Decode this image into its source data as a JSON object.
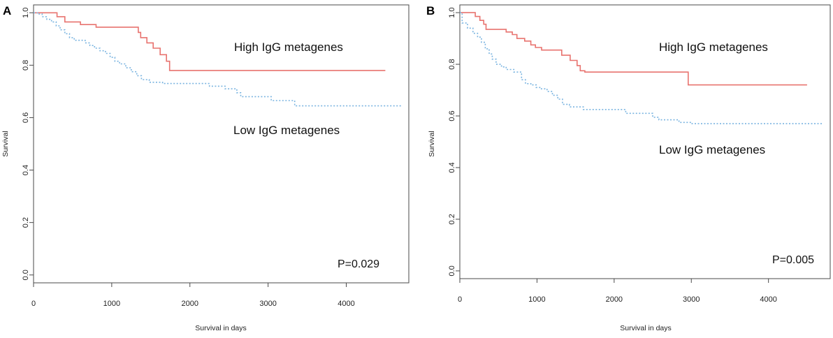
{
  "chart_data": [
    {
      "type": "line",
      "panel_label": "A",
      "xlabel": "Survival in days",
      "ylabel": "Survival",
      "xlim": [
        0,
        4800
      ],
      "ylim": [
        -0.03,
        1.03
      ],
      "xticks": [
        0,
        1000,
        2000,
        3000,
        4000
      ],
      "xtick_labels": [
        "0",
        "1000",
        "2000",
        "3000",
        "4000"
      ],
      "yticks": [
        0.0,
        0.2,
        0.4,
        0.6,
        0.8,
        1.0
      ],
      "ytick_labels": [
        "0.0",
        "0.2",
        "0.4",
        "0.6",
        "0.8",
        "1.0"
      ],
      "p_value": "P=0.029",
      "series": [
        {
          "name": "High IgG metagenes",
          "color": "#e8736f",
          "dash": "solid",
          "steps": [
            [
              0,
              1.0
            ],
            [
              300,
              0.985
            ],
            [
              400,
              0.965
            ],
            [
              600,
              0.955
            ],
            [
              800,
              0.945
            ],
            [
              1340,
              0.925
            ],
            [
              1370,
              0.905
            ],
            [
              1450,
              0.885
            ],
            [
              1530,
              0.865
            ],
            [
              1620,
              0.84
            ],
            [
              1700,
              0.815
            ],
            [
              1740,
              0.78
            ],
            [
              4500,
              0.78
            ]
          ]
        },
        {
          "name": "Low IgG metagenes",
          "color": "#7ab4e0",
          "dash": "dotted",
          "steps": [
            [
              0,
              1.0
            ],
            [
              50,
              0.995
            ],
            [
              110,
              0.985
            ],
            [
              170,
              0.975
            ],
            [
              230,
              0.965
            ],
            [
              290,
              0.95
            ],
            [
              340,
              0.935
            ],
            [
              400,
              0.92
            ],
            [
              460,
              0.905
            ],
            [
              520,
              0.895
            ],
            [
              660,
              0.885
            ],
            [
              720,
              0.875
            ],
            [
              780,
              0.865
            ],
            [
              850,
              0.855
            ],
            [
              920,
              0.845
            ],
            [
              980,
              0.83
            ],
            [
              1040,
              0.815
            ],
            [
              1100,
              0.805
            ],
            [
              1180,
              0.79
            ],
            [
              1250,
              0.775
            ],
            [
              1320,
              0.76
            ],
            [
              1380,
              0.745
            ],
            [
              1480,
              0.735
            ],
            [
              1650,
              0.73
            ],
            [
              2250,
              0.72
            ],
            [
              2450,
              0.71
            ],
            [
              2600,
              0.695
            ],
            [
              2650,
              0.68
            ],
            [
              3040,
              0.665
            ],
            [
              3340,
              0.645
            ],
            [
              4700,
              0.645
            ]
          ]
        }
      ],
      "annotations": [
        "High IgG metagenes",
        "Low IgG metagenes"
      ]
    },
    {
      "type": "line",
      "panel_label": "B",
      "xlabel": "Survival in days",
      "ylabel": "Survival",
      "xlim": [
        0,
        4800
      ],
      "ylim": [
        -0.03,
        1.03
      ],
      "xticks": [
        0,
        1000,
        2000,
        3000,
        4000
      ],
      "xtick_labels": [
        "0",
        "1000",
        "2000",
        "3000",
        "4000"
      ],
      "yticks": [
        0.0,
        0.2,
        0.4,
        0.6,
        0.8,
        1.0
      ],
      "ytick_labels": [
        "0.0",
        "0.2",
        "0.4",
        "0.6",
        "0.8",
        "1.0"
      ],
      "p_value": "P=0.005",
      "series": [
        {
          "name": "High IgG metagenes",
          "color": "#e8736f",
          "dash": "solid",
          "steps": [
            [
              0,
              1.0
            ],
            [
              200,
              0.985
            ],
            [
              260,
              0.97
            ],
            [
              310,
              0.955
            ],
            [
              340,
              0.935
            ],
            [
              600,
              0.925
            ],
            [
              680,
              0.915
            ],
            [
              740,
              0.9
            ],
            [
              840,
              0.89
            ],
            [
              920,
              0.875
            ],
            [
              980,
              0.865
            ],
            [
              1060,
              0.855
            ],
            [
              1320,
              0.835
            ],
            [
              1430,
              0.815
            ],
            [
              1520,
              0.795
            ],
            [
              1560,
              0.775
            ],
            [
              1620,
              0.77
            ],
            [
              2960,
              0.72
            ],
            [
              4500,
              0.72
            ]
          ]
        },
        {
          "name": "Low IgG metagenes",
          "color": "#7ab4e0",
          "dash": "dotted",
          "steps": [
            [
              0,
              1.0
            ],
            [
              30,
              0.96
            ],
            [
              100,
              0.94
            ],
            [
              170,
              0.92
            ],
            [
              230,
              0.905
            ],
            [
              280,
              0.885
            ],
            [
              330,
              0.86
            ],
            [
              380,
              0.84
            ],
            [
              420,
              0.82
            ],
            [
              470,
              0.8
            ],
            [
              540,
              0.79
            ],
            [
              600,
              0.78
            ],
            [
              700,
              0.77
            ],
            [
              800,
              0.74
            ],
            [
              850,
              0.725
            ],
            [
              920,
              0.72
            ],
            [
              990,
              0.71
            ],
            [
              1050,
              0.705
            ],
            [
              1130,
              0.695
            ],
            [
              1200,
              0.68
            ],
            [
              1270,
              0.665
            ],
            [
              1330,
              0.645
            ],
            [
              1420,
              0.635
            ],
            [
              1600,
              0.625
            ],
            [
              2150,
              0.61
            ],
            [
              2500,
              0.595
            ],
            [
              2580,
              0.585
            ],
            [
              2840,
              0.575
            ],
            [
              3000,
              0.57
            ],
            [
              4700,
              0.57
            ]
          ]
        }
      ],
      "annotations": [
        "High IgG metagenes",
        "Low IgG metagenes"
      ]
    }
  ]
}
